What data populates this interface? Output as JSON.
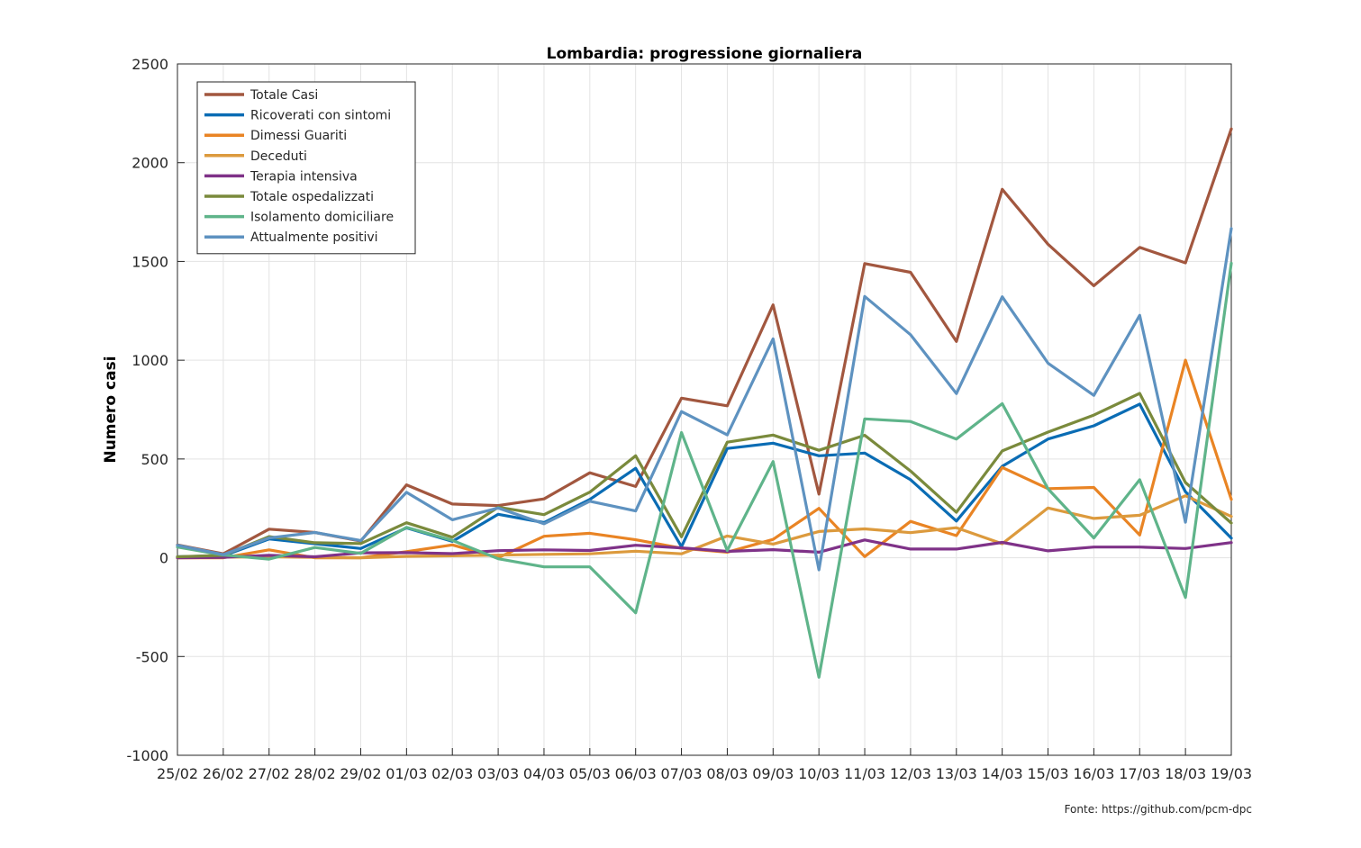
{
  "source_note": "Fonte: https://github.com/pcm-dpc",
  "colors": {
    "grid": "#e3e3e3",
    "axis": "#262626"
  },
  "chart_data": {
    "type": "line",
    "title": "Lombardia: progressione giornaliera",
    "xlabel": "",
    "ylabel": "Numero casi",
    "ylim": [
      -1000,
      2500
    ],
    "yticks": [
      -1000,
      -500,
      0,
      500,
      1000,
      1500,
      2000,
      2500
    ],
    "categories": [
      "25/02",
      "26/02",
      "27/02",
      "28/02",
      "29/02",
      "01/03",
      "02/03",
      "03/03",
      "04/03",
      "05/03",
      "06/03",
      "07/03",
      "08/03",
      "09/03",
      "10/03",
      "11/03",
      "12/03",
      "13/03",
      "14/03",
      "15/03",
      "16/03",
      "17/03",
      "18/03",
      "19/03"
    ],
    "grid": true,
    "legend_position": "top-left",
    "series": [
      {
        "name": "Totale Casi",
        "color": "#a2573f",
        "values": [
          65,
          20,
          145,
          128,
          84,
          369,
          272,
          264,
          298,
          430,
          361,
          808,
          769,
          1280,
          322,
          1489,
          1445,
          1095,
          1865,
          1587,
          1377,
          1571,
          1493,
          2171
        ]
      },
      {
        "name": "Ricoverati con sintomi",
        "color": "#0a6cb4",
        "values": [
          5,
          10,
          95,
          71,
          47,
          151,
          83,
          220,
          178,
          295,
          453,
          56,
          553,
          580,
          516,
          530,
          395,
          186,
          463,
          601,
          668,
          778,
          334,
          99
        ]
      },
      {
        "name": "Dimessi Guariti",
        "color": "#e98424",
        "values": [
          0,
          0,
          40,
          0,
          0,
          31,
          65,
          0,
          109,
          124,
          91,
          48,
          28,
          93,
          250,
          6,
          184,
          112,
          457,
          350,
          356,
          115,
          1000,
          295
        ]
      },
      {
        "name": "Deceduti",
        "color": "#dc9a3d",
        "values": [
          2,
          3,
          5,
          2,
          0,
          7,
          10,
          13,
          17,
          20,
          33,
          20,
          110,
          69,
          133,
          146,
          127,
          152,
          71,
          252,
          199,
          215,
          314,
          209
        ]
      },
      {
        "name": "Terapia intensiva",
        "color": "#7f3288",
        "values": [
          0,
          2,
          12,
          5,
          25,
          26,
          21,
          36,
          40,
          37,
          63,
          50,
          32,
          41,
          28,
          90,
          44,
          44,
          78,
          35,
          54,
          54,
          47,
          77
        ]
      },
      {
        "name": "Totale ospedalizzati",
        "color": "#7a8a3c",
        "values": [
          5,
          12,
          107,
          76,
          72,
          177,
          104,
          256,
          218,
          332,
          516,
          106,
          585,
          621,
          544,
          620,
          439,
          230,
          541,
          636,
          722,
          832,
          381,
          176
        ]
      },
      {
        "name": "Isolamento domiciliare",
        "color": "#5fb48a",
        "values": [
          54,
          14,
          -7,
          52,
          22,
          154,
          88,
          -5,
          -46,
          -46,
          -279,
          634,
          37,
          487,
          -605,
          703,
          690,
          601,
          780,
          349,
          100,
          395,
          -201,
          1491
        ]
      },
      {
        "name": "Attualmente positivi",
        "color": "#5e92c0",
        "values": [
          63,
          16,
          100,
          128,
          87,
          331,
          192,
          252,
          172,
          286,
          237,
          740,
          622,
          1108,
          -61,
          1323,
          1129,
          831,
          1321,
          985,
          822,
          1227,
          180,
          1667
        ]
      }
    ]
  }
}
